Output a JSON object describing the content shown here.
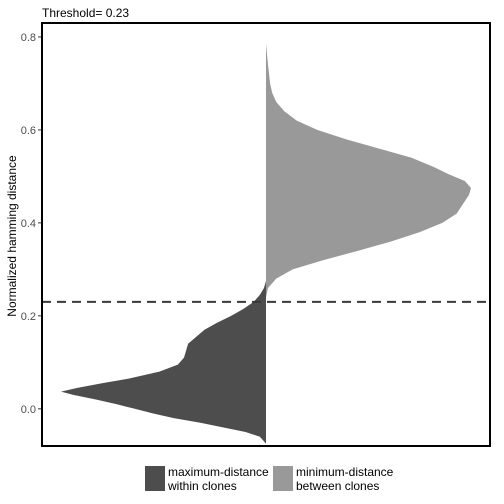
{
  "chart_data": {
    "type": "violin-split",
    "title": "Threshold= 0.23",
    "xlabel": "",
    "ylabel": "Normalized hamming distance",
    "ylim": [
      -0.08,
      0.83
    ],
    "yticks": [
      0.0,
      0.2,
      0.4,
      0.6,
      0.8
    ],
    "ytick_labels": [
      "0.0",
      "0.2",
      "0.4",
      "0.6",
      "0.8"
    ],
    "threshold": 0.23,
    "grid": false,
    "legend": {
      "position": "bottom"
    },
    "series": [
      {
        "name": "maximum-distance\nwithin clones",
        "side": "left",
        "color": "#4d4d4d",
        "density": [
          [
            -0.075,
            0.0
          ],
          [
            -0.06,
            0.03
          ],
          [
            -0.05,
            0.1
          ],
          [
            -0.04,
            0.21
          ],
          [
            -0.03,
            0.32
          ],
          [
            -0.02,
            0.45
          ],
          [
            -0.01,
            0.55
          ],
          [
            0.0,
            0.64
          ],
          [
            0.01,
            0.73
          ],
          [
            0.02,
            0.83
          ],
          [
            0.03,
            0.94
          ],
          [
            0.037,
            1.0
          ],
          [
            0.045,
            0.92
          ],
          [
            0.055,
            0.8
          ],
          [
            0.065,
            0.67
          ],
          [
            0.08,
            0.52
          ],
          [
            0.095,
            0.43
          ],
          [
            0.11,
            0.4
          ],
          [
            0.125,
            0.39
          ],
          [
            0.14,
            0.38
          ],
          [
            0.155,
            0.34
          ],
          [
            0.17,
            0.3
          ],
          [
            0.185,
            0.24
          ],
          [
            0.2,
            0.17
          ],
          [
            0.215,
            0.11
          ],
          [
            0.23,
            0.06
          ],
          [
            0.245,
            0.03
          ],
          [
            0.26,
            0.01
          ],
          [
            0.275,
            0.0
          ]
        ]
      },
      {
        "name": "minimum-distance\nbetween clones",
        "side": "right",
        "color": "#999999",
        "density": [
          [
            0.24,
            0.0
          ],
          [
            0.26,
            0.01
          ],
          [
            0.28,
            0.05
          ],
          [
            0.3,
            0.13
          ],
          [
            0.32,
            0.28
          ],
          [
            0.34,
            0.45
          ],
          [
            0.36,
            0.61
          ],
          [
            0.38,
            0.75
          ],
          [
            0.4,
            0.86
          ],
          [
            0.42,
            0.93
          ],
          [
            0.44,
            0.96
          ],
          [
            0.46,
            0.99
          ],
          [
            0.475,
            1.0
          ],
          [
            0.49,
            0.97
          ],
          [
            0.505,
            0.89
          ],
          [
            0.52,
            0.82
          ],
          [
            0.54,
            0.71
          ],
          [
            0.56,
            0.55
          ],
          [
            0.58,
            0.39
          ],
          [
            0.6,
            0.25
          ],
          [
            0.62,
            0.15
          ],
          [
            0.64,
            0.09
          ],
          [
            0.66,
            0.05
          ],
          [
            0.68,
            0.03
          ],
          [
            0.7,
            0.02
          ],
          [
            0.74,
            0.01
          ],
          [
            0.785,
            0.0
          ]
        ]
      }
    ]
  }
}
